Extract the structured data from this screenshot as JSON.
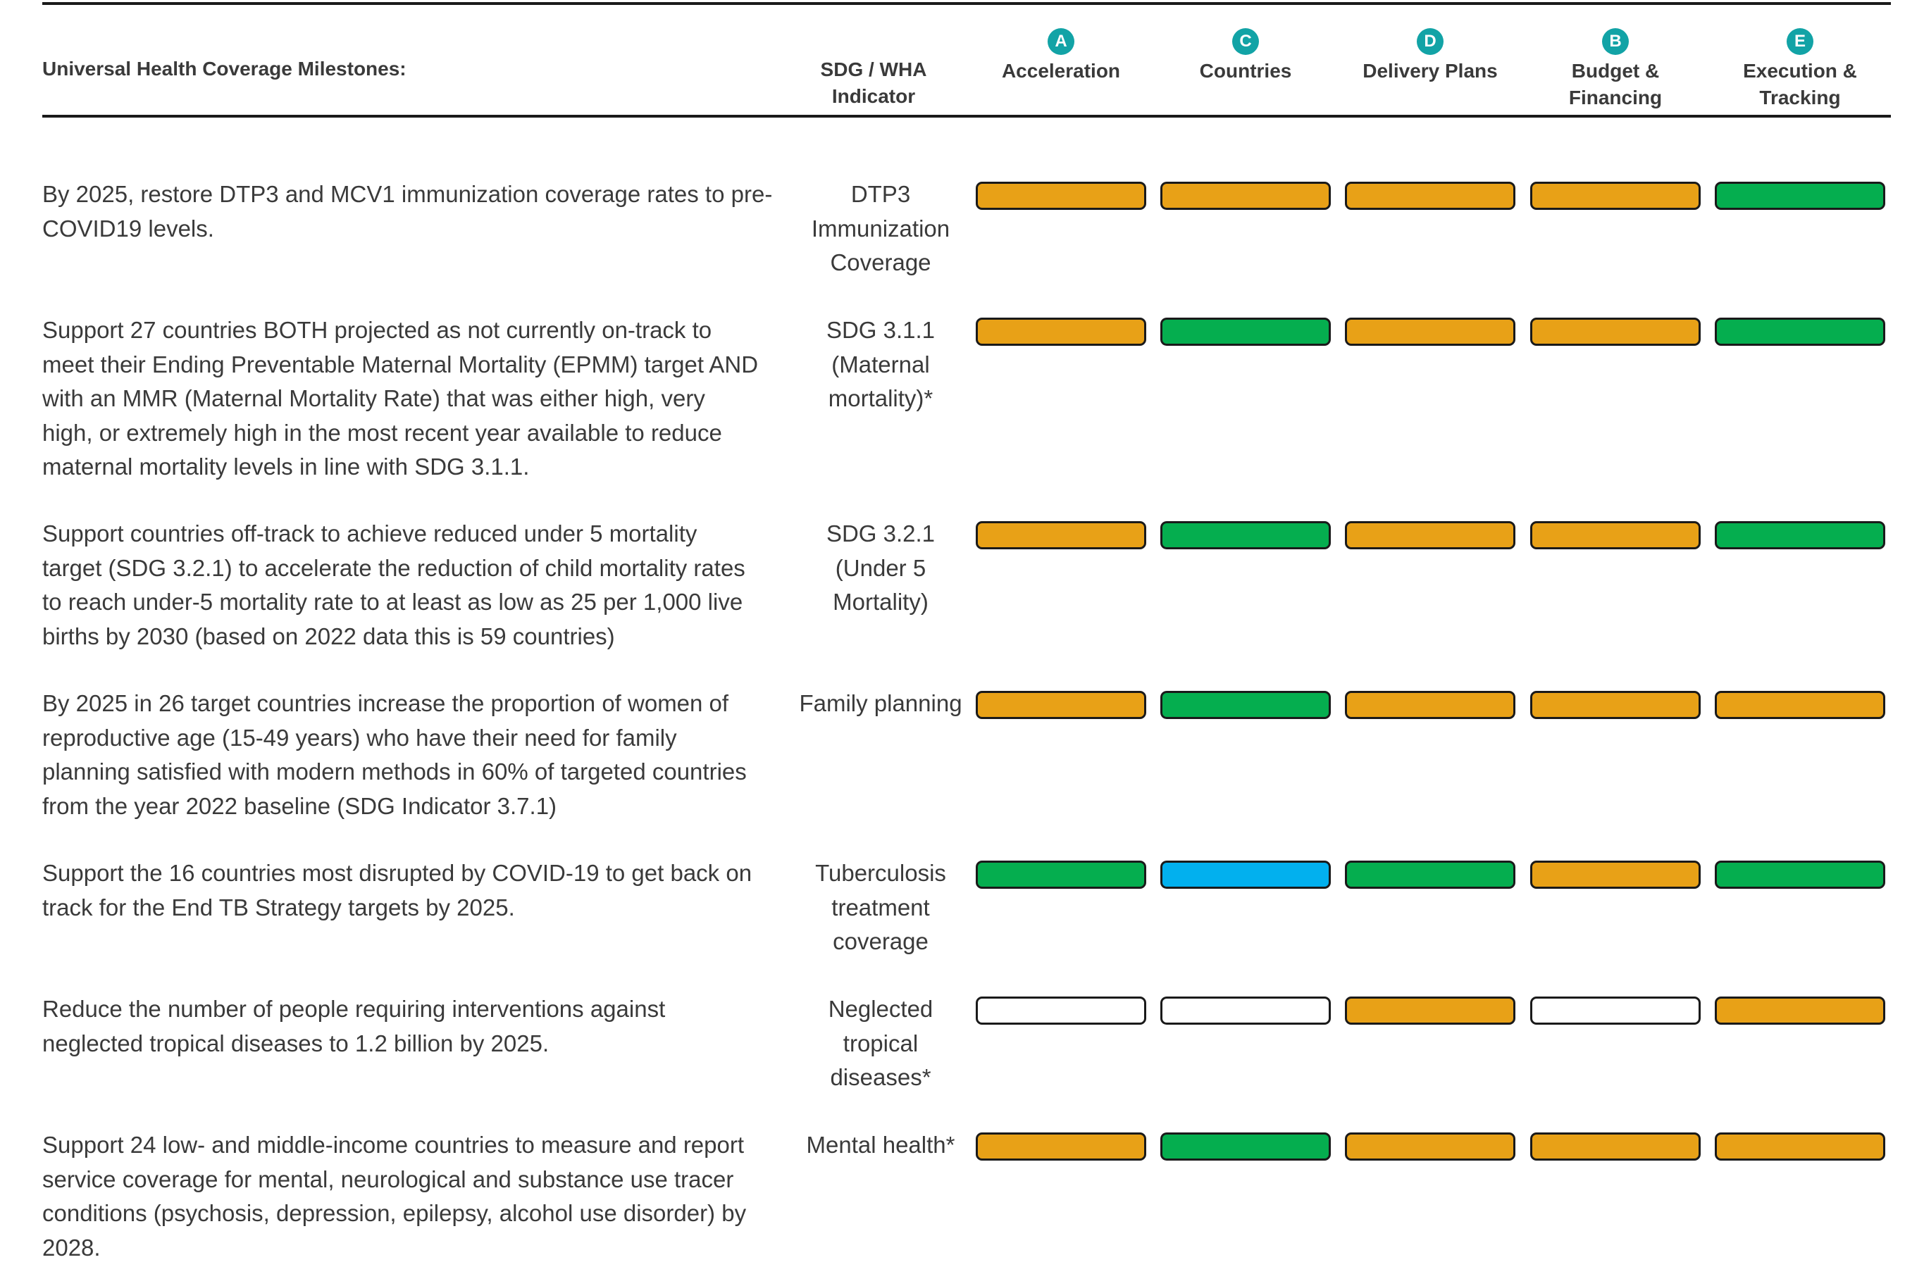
{
  "header": {
    "title": "Universal Health Coverage Milestones:",
    "indicator_line1": "SDG / WHA",
    "indicator_line2": "Indicator",
    "columns": [
      {
        "badge": "A",
        "label_line1": "Acceleration",
        "label_line2": ""
      },
      {
        "badge": "C",
        "label_line1": "Countries",
        "label_line2": ""
      },
      {
        "badge": "D",
        "label_line1": "Delivery Plans",
        "label_line2": ""
      },
      {
        "badge": "B",
        "label_line1": "Budget & Financing",
        "label_line2": ""
      },
      {
        "badge": "E",
        "label_line1": "Execution &",
        "label_line2": "Tracking"
      }
    ]
  },
  "status_colors": {
    "amber": "#e8a117",
    "green": "#05ae4f",
    "blue": "#02b0ee",
    "empty": "#ffffff"
  },
  "rows": [
    {
      "description": [
        "By 2025, restore DTP3 and MCV1 immunization coverage rates to pre-",
        "COVID19 levels."
      ],
      "indicator": [
        "DTP3",
        "Immunization",
        "Coverage"
      ],
      "statuses": [
        "amber",
        "amber",
        "amber",
        "amber",
        "green"
      ]
    },
    {
      "description": [
        "Support 27 countries BOTH projected as not currently on-track to",
        "meet their Ending Preventable Maternal Mortality (EPMM) target AND",
        "with an MMR (Maternal Mortality Rate) that was either high, very",
        "high, or extremely high in the most recent year available to reduce",
        "maternal mortality levels in line with SDG 3.1.1."
      ],
      "indicator": [
        "SDG 3.1.1",
        "(Maternal",
        "mortality)*"
      ],
      "statuses": [
        "amber",
        "green",
        "amber",
        "amber",
        "green"
      ]
    },
    {
      "description": [
        "Support countries off-track to achieve reduced under 5 mortality",
        "target (SDG 3.2.1) to accelerate the reduction of child mortality rates",
        "to reach under-5 mortality rate to at least as low as 25 per 1,000 live",
        "births by 2030 (based on 2022 data this is 59 countries)"
      ],
      "indicator": [
        "SDG 3.2.1",
        "(Under 5",
        "Mortality)"
      ],
      "statuses": [
        "amber",
        "green",
        "amber",
        "amber",
        "green"
      ]
    },
    {
      "description": [
        "By 2025 in 26 target countries increase the proportion of women of",
        "reproductive age (15-49 years) who have their need for family",
        "planning satisfied with modern methods in 60% of targeted countries",
        "from the year 2022 baseline (SDG Indicator 3.7.1)"
      ],
      "indicator": [
        "Family planning"
      ],
      "statuses": [
        "amber",
        "green",
        "amber",
        "amber",
        "amber"
      ]
    },
    {
      "description": [
        "Support the 16 countries most disrupted by COVID-19 to get back on",
        "track for the End TB Strategy targets by 2025."
      ],
      "indicator": [
        "Tuberculosis",
        "treatment",
        "coverage"
      ],
      "statuses": [
        "green",
        "blue",
        "green",
        "amber",
        "green"
      ]
    },
    {
      "description": [
        "Reduce the number of people requiring interventions against",
        "neglected tropical diseases to 1.2 billion by 2025."
      ],
      "indicator": [
        "Neglected",
        "tropical",
        "diseases*"
      ],
      "statuses": [
        "empty",
        "empty",
        "amber",
        "empty",
        "amber"
      ]
    },
    {
      "description": [
        "Support 24 low- and middle-income countries to measure and report",
        "service coverage for mental, neurological and substance use tracer",
        "conditions (psychosis, depression, epilepsy, alcohol use disorder) by",
        "2028."
      ],
      "indicator": [
        "Mental health*"
      ],
      "statuses": [
        "amber",
        "green",
        "amber",
        "amber",
        "amber"
      ]
    }
  ]
}
